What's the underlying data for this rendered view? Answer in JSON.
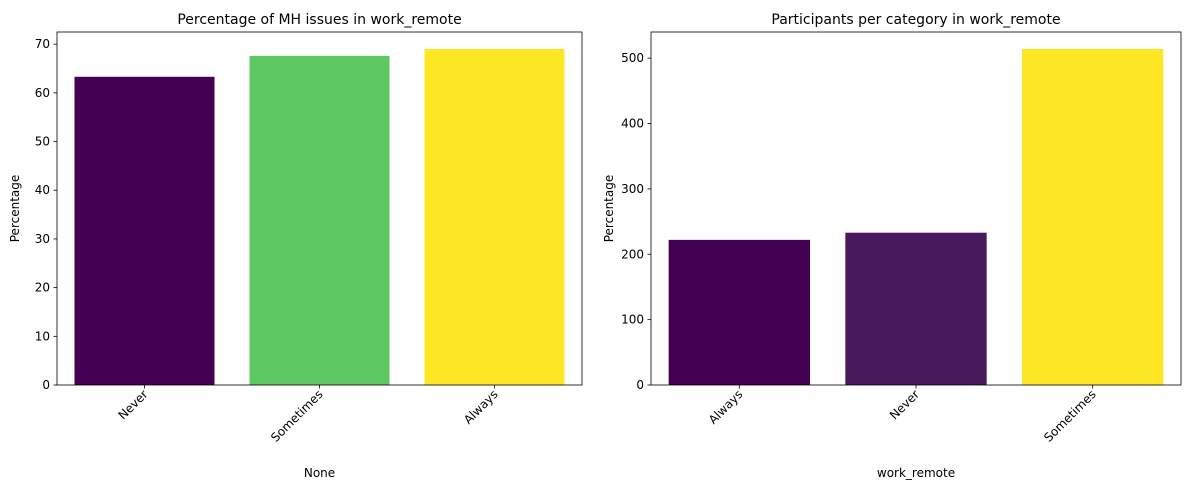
{
  "chart_data": [
    {
      "type": "bar",
      "title": "Percentage of MH issues in work_remote",
      "xlabel": "None",
      "ylabel": "Percentage",
      "categories": [
        "Never",
        "Sometimes",
        "Always"
      ],
      "values": [
        63.3,
        67.6,
        69.0
      ],
      "colors": [
        "#440154",
        "#5ec962",
        "#fde725"
      ],
      "ylim": [
        0,
        72.5
      ],
      "yticks": [
        0,
        10,
        20,
        30,
        40,
        50,
        60,
        70
      ],
      "grid": false,
      "legend": "none"
    },
    {
      "type": "bar",
      "title": "Participants per category in work_remote",
      "xlabel": "work_remote",
      "ylabel": "Percentage",
      "categories": [
        "Always",
        "Never",
        "Sometimes"
      ],
      "values": [
        222,
        233,
        514
      ],
      "colors": [
        "#440154",
        "#481a5c",
        "#fde725"
      ],
      "ylim": [
        0,
        540
      ],
      "yticks": [
        0,
        100,
        200,
        300,
        400,
        500
      ],
      "grid": false,
      "legend": "none"
    }
  ]
}
